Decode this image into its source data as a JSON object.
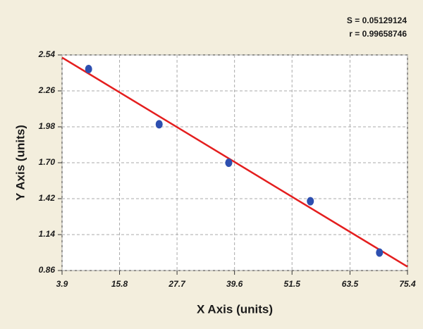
{
  "chart_data": {
    "type": "scatter",
    "annotations": [
      "S = 0.05129124",
      "r = 0.99658746"
    ],
    "x_label": "X Axis (units)",
    "y_label": "Y Axis (units)",
    "x": [
      9.4,
      24.0,
      38.4,
      55.3,
      69.6
    ],
    "values": [
      2.43,
      2.0,
      1.7,
      1.4,
      1.0
    ],
    "color": "#2d4fb0",
    "fit_line": {
      "x": [
        3.9,
        75.4
      ],
      "y": [
        2.52,
        0.89
      ],
      "color": "#e41e1e"
    },
    "xlim": [
      3.9,
      75.4
    ],
    "xticks": [
      3.9,
      15.8,
      27.7,
      39.6,
      51.5,
      63.5,
      75.4
    ],
    "ylim": [
      0.86,
      2.54
    ],
    "yticks": [
      2.54,
      2.26,
      1.98,
      {
        "value": 1.7,
        "label": "1.70"
      },
      1.42,
      1.14,
      0.86
    ],
    "grid": true
  }
}
